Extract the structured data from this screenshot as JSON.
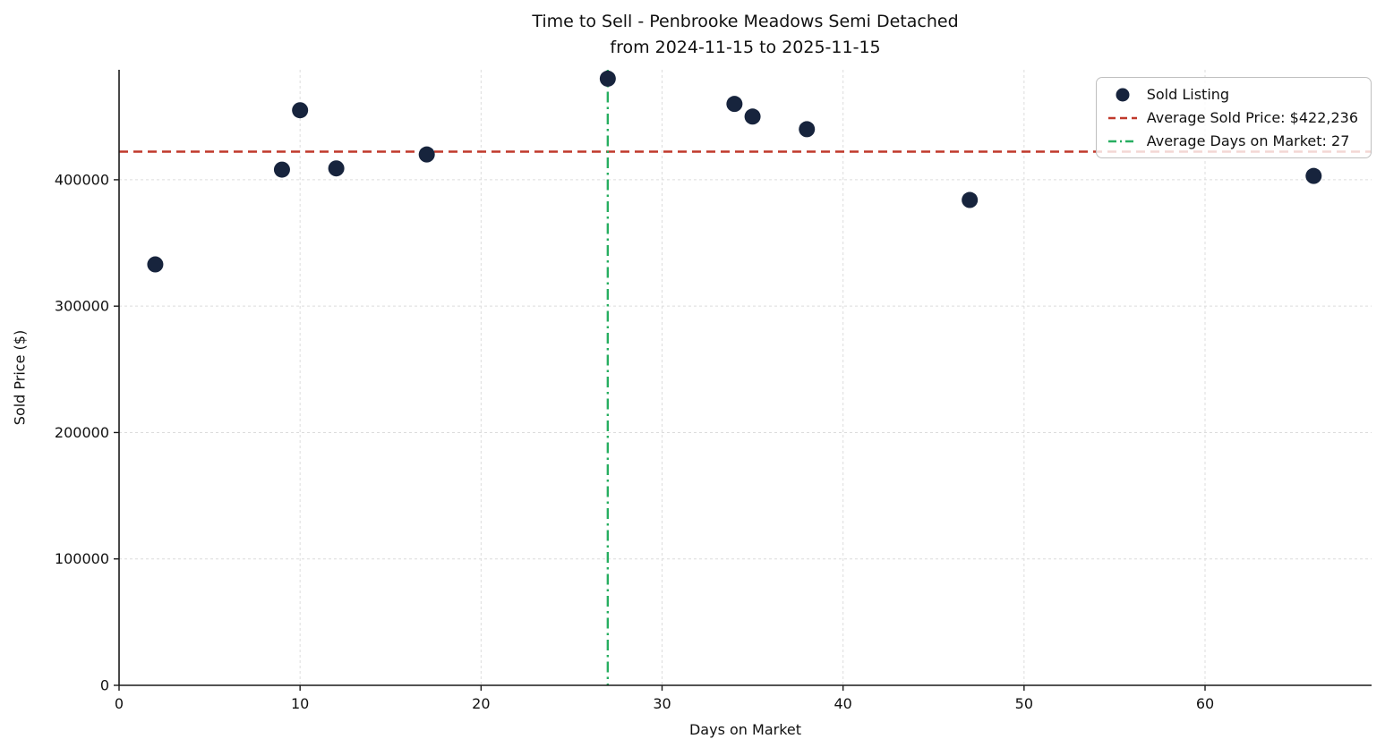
{
  "chart_data": {
    "type": "scatter",
    "title": "Time to Sell - Penbrooke Meadows Semi Detached",
    "subtitle": "from 2024-11-15 to 2025-11-15",
    "xlabel": "Days on Market",
    "ylabel": "Sold Price ($)",
    "xlim": [
      0,
      69.2
    ],
    "ylim": [
      0,
      487000
    ],
    "xticks": [
      0,
      10,
      20,
      30,
      40,
      50,
      60
    ],
    "yticks": [
      0,
      100000,
      200000,
      300000,
      400000
    ],
    "points": [
      {
        "x": 2,
        "y": 333000
      },
      {
        "x": 9,
        "y": 408000
      },
      {
        "x": 10,
        "y": 455000
      },
      {
        "x": 12,
        "y": 409000
      },
      {
        "x": 17,
        "y": 420000
      },
      {
        "x": 27,
        "y": 480000
      },
      {
        "x": 34,
        "y": 460000
      },
      {
        "x": 35,
        "y": 450000
      },
      {
        "x": 38,
        "y": 440000
      },
      {
        "x": 47,
        "y": 384000
      },
      {
        "x": 66,
        "y": 403000
      }
    ],
    "avg_sold_price": 422236,
    "avg_days_on_market": 27,
    "grid": true,
    "legend_position": "upper right",
    "legend": [
      {
        "label": "Sold Listing",
        "type": "marker"
      },
      {
        "label": "Average Sold Price: $422,236",
        "type": "dashed"
      },
      {
        "label": "Average Days on Market: 27",
        "type": "dashdot"
      }
    ],
    "colors": {
      "point": "#17243d",
      "avg_price_line": "#c0392b",
      "avg_days_line": "#27ae60",
      "grid": "#dcdcdc",
      "spine": "#1a1a1a"
    }
  }
}
